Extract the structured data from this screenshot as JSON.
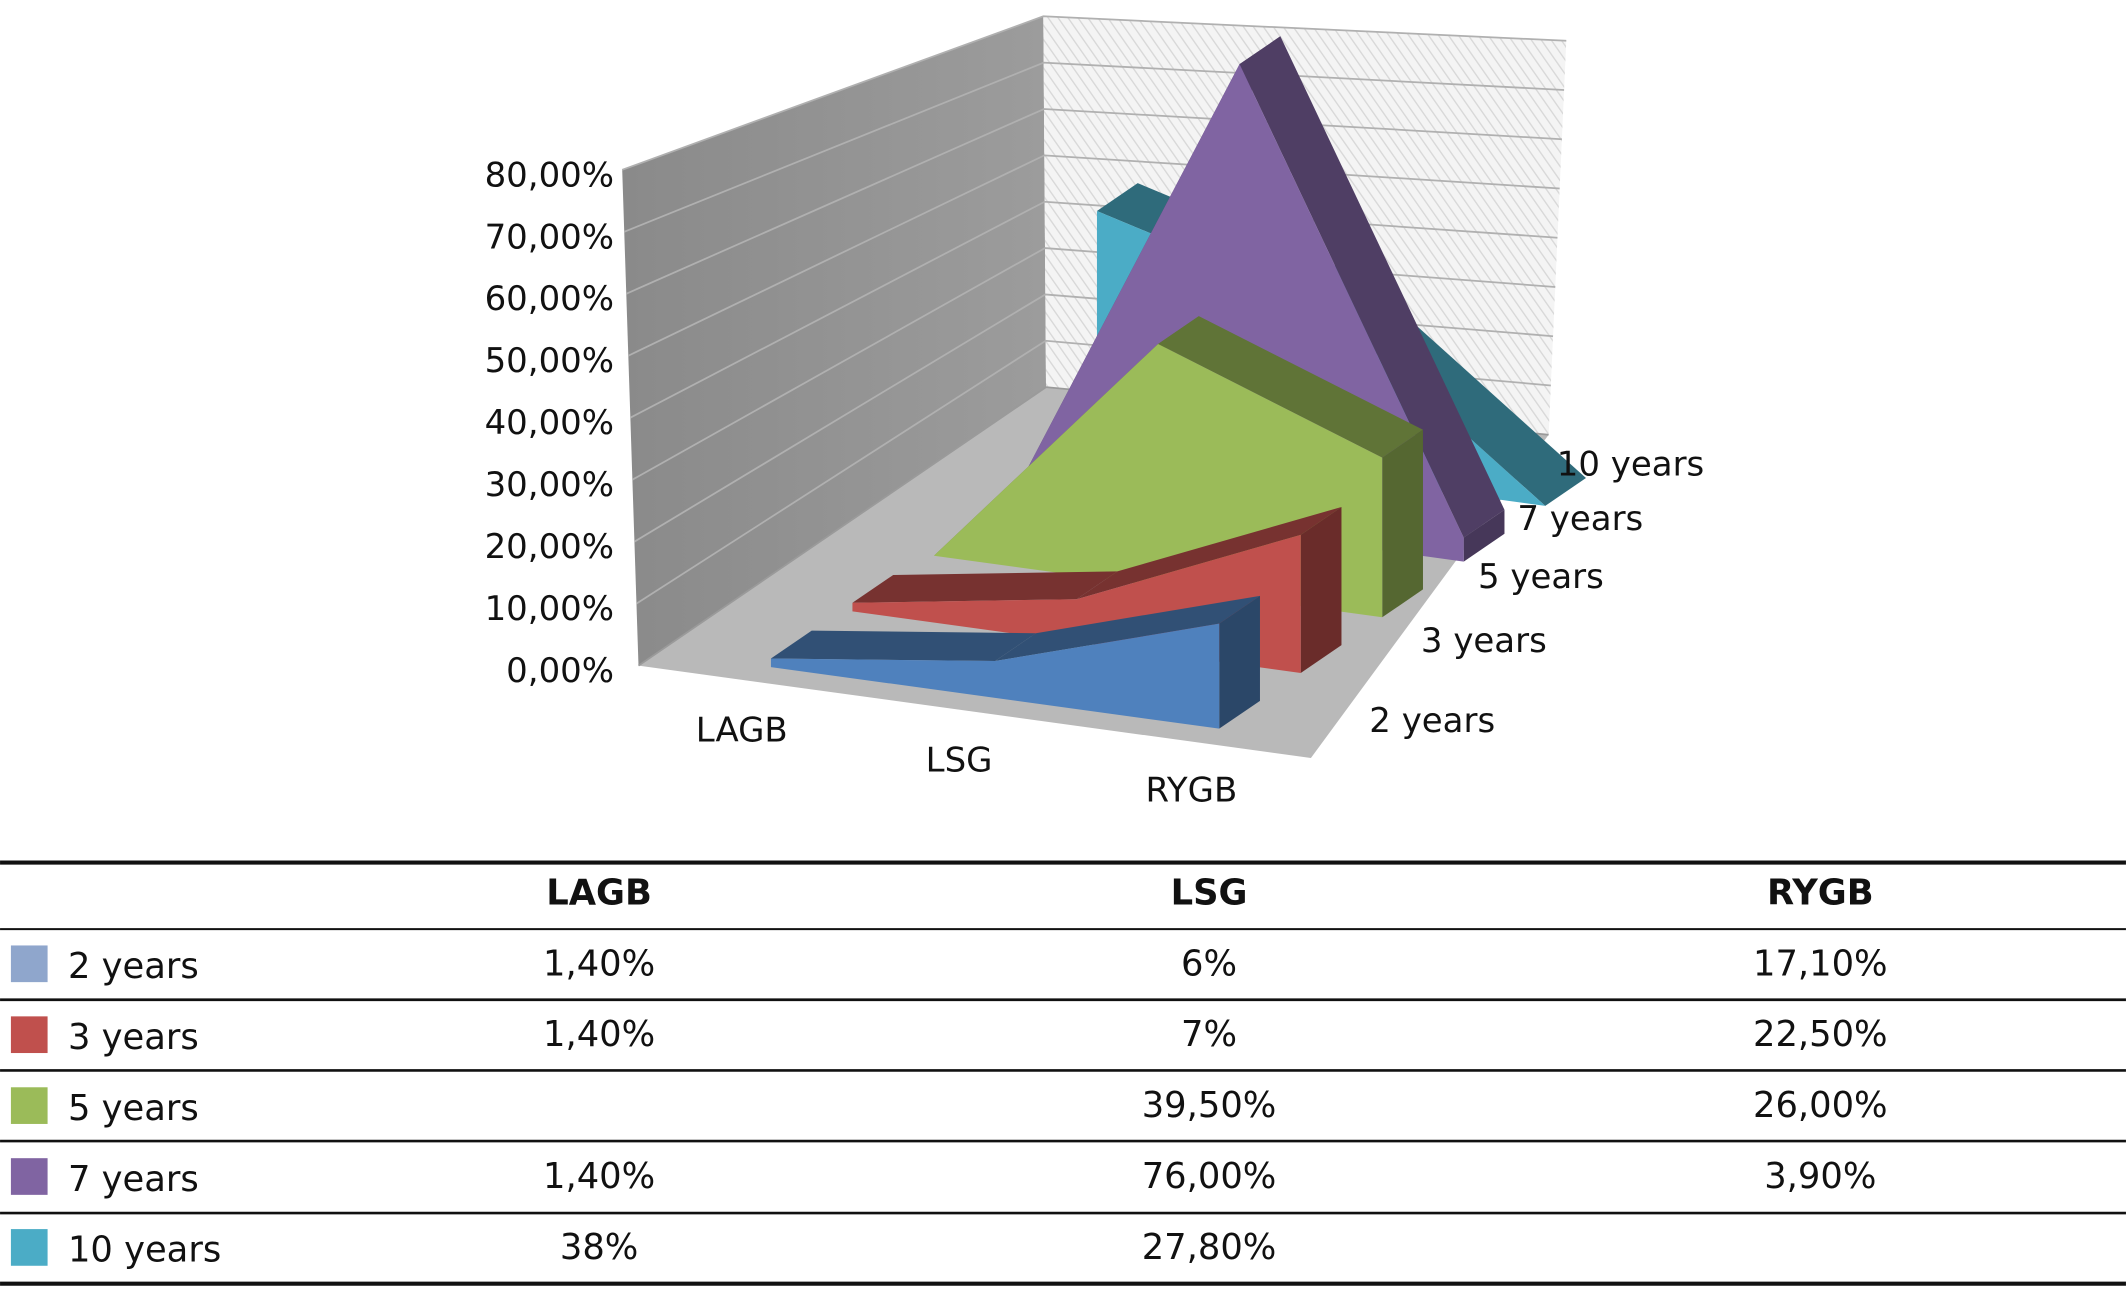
{
  "chart_data": {
    "type": "area",
    "subtype": "3d-area",
    "categories": [
      "LAGB",
      "LSG",
      "RYGB"
    ],
    "y_ticks": [
      "0,00%",
      "10,00%",
      "20,00%",
      "30,00%",
      "40,00%",
      "50,00%",
      "60,00%",
      "70,00%",
      "80,00%"
    ],
    "ylim": [
      0,
      80
    ],
    "ylabel": "",
    "xlabel": "",
    "series": [
      {
        "name": "2 years",
        "values": [
          1.4,
          6,
          17.1
        ],
        "labels": [
          "1,40%",
          "6%",
          "17,10%"
        ],
        "color": "#4f81bd",
        "swatch": "#8fa6cc"
      },
      {
        "name": "3 years",
        "values": [
          1.4,
          7,
          22.5
        ],
        "labels": [
          "1,40%",
          "7%",
          "22,50%"
        ],
        "color": "#c0504d",
        "swatch": "#c0504d"
      },
      {
        "name": "5 years",
        "values": [
          null,
          39.5,
          26.0
        ],
        "labels": [
          "",
          "39,50%",
          "26,00%"
        ],
        "color": "#9bbb59",
        "swatch": "#9bbb59"
      },
      {
        "name": "7 years",
        "values": [
          1.4,
          76.0,
          3.9
        ],
        "labels": [
          "1,40%",
          "76,00%",
          "3,90%"
        ],
        "color": "#8064a2",
        "swatch": "#8064a2"
      },
      {
        "name": "10 years",
        "values": [
          38,
          27.8,
          null
        ],
        "labels": [
          "38%",
          "27,80%",
          ""
        ],
        "color": "#4bacc6",
        "swatch": "#4bacc6"
      }
    ],
    "grid": true,
    "data_table": true
  }
}
